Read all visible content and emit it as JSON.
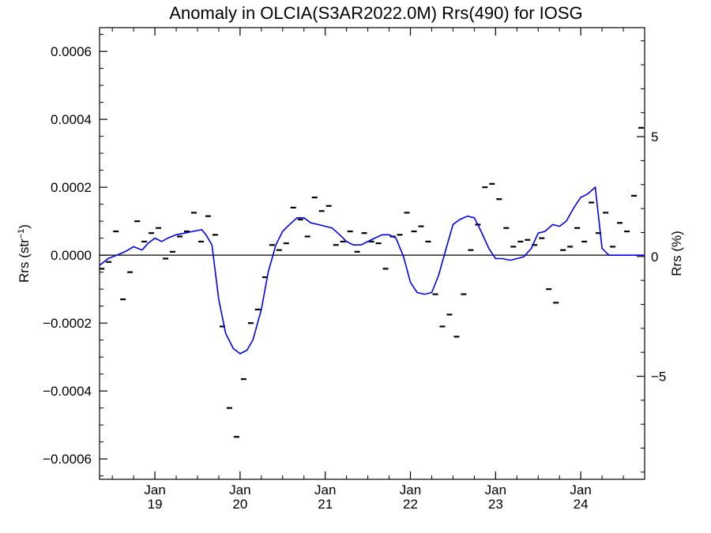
{
  "chart_data": {
    "type": "line",
    "title": "Anomaly in OLCIA(S3AR2022.0M) Rrs(490) for IOSG",
    "ylabel_left": "Rrs (str",
    "ylabel_left_sup": "−1",
    "ylabel_left_close": ")",
    "ylabel_right": "Rrs (%)",
    "xlim": [
      2018.35,
      2024.75
    ],
    "ylim": [
      -0.00066,
      0.00067
    ],
    "y2lim": [
      -9.3,
      9.55
    ],
    "yticks": [
      {
        "value": 0.0006,
        "label": "0.0006"
      },
      {
        "value": 0.0004,
        "label": "0.0004"
      },
      {
        "value": 0.0002,
        "label": "0.0002"
      },
      {
        "value": 0.0,
        "label": "0.0000"
      },
      {
        "value": -0.0002,
        "label": "−0.0002"
      },
      {
        "value": -0.0004,
        "label": "−0.0004"
      },
      {
        "value": -0.0006,
        "label": "−0.0006"
      }
    ],
    "y2ticks": [
      {
        "value": 5,
        "label": "5"
      },
      {
        "value": 0,
        "label": "0"
      },
      {
        "value": -5,
        "label": "−5"
      }
    ],
    "xticks": [
      {
        "value": 2019.0,
        "month": "Jan",
        "year": "19"
      },
      {
        "value": 2020.0,
        "month": "Jan",
        "year": "20"
      },
      {
        "value": 2021.0,
        "month": "Jan",
        "year": "21"
      },
      {
        "value": 2022.0,
        "month": "Jan",
        "year": "22"
      },
      {
        "value": 2023.0,
        "month": "Jan",
        "year": "23"
      },
      {
        "value": 2024.0,
        "month": "Jan",
        "year": "24"
      }
    ],
    "zero_line": 0,
    "grid": false,
    "series": [
      {
        "kind": "monthly anomalies",
        "style": "black horizontal markers",
        "color": "#000000",
        "x": [
          2018.375,
          2018.458,
          2018.542,
          2018.625,
          2018.708,
          2018.792,
          2018.875,
          2018.958,
          2019.042,
          2019.125,
          2019.208,
          2019.292,
          2019.375,
          2019.458,
          2019.542,
          2019.625,
          2019.708,
          2019.792,
          2019.875,
          2019.958,
          2020.042,
          2020.125,
          2020.208,
          2020.292,
          2020.375,
          2020.458,
          2020.542,
          2020.625,
          2020.708,
          2020.792,
          2020.875,
          2020.958,
          2021.042,
          2021.125,
          2021.208,
          2021.292,
          2021.375,
          2021.458,
          2021.542,
          2021.625,
          2021.708,
          2021.792,
          2021.875,
          2021.958,
          2022.042,
          2022.125,
          2022.208,
          2022.292,
          2022.375,
          2022.458,
          2022.542,
          2022.625,
          2022.708,
          2022.792,
          2022.875,
          2022.958,
          2023.042,
          2023.125,
          2023.208,
          2023.292,
          2023.375,
          2023.458,
          2023.542,
          2023.625,
          2023.708,
          2023.792,
          2023.875,
          2023.958,
          2024.042,
          2024.125,
          2024.208,
          2024.292,
          2024.375,
          2024.458,
          2024.542,
          2024.625,
          2024.708
        ],
        "y": [
          -4e-05,
          -2e-05,
          7e-05,
          -0.00013,
          -5e-05,
          0.0001,
          4e-05,
          6.5e-05,
          8e-05,
          -1e-05,
          1e-05,
          5.5e-05,
          7e-05,
          0.000125,
          4e-05,
          0.000115,
          6e-05,
          -0.00021,
          -0.00045,
          -0.000535,
          -0.000365,
          -0.0002,
          -0.00016,
          -6.5e-05,
          3e-05,
          1.5e-05,
          3.5e-05,
          0.00014,
          0.000105,
          5.5e-05,
          0.00017,
          0.00013,
          0.000145,
          3e-05,
          4e-05,
          7e-05,
          1e-05,
          6.5e-05,
          4e-05,
          3.5e-05,
          -4e-05,
          5.5e-05,
          6e-05,
          0.000125,
          7e-05,
          8.5e-05,
          4e-05,
          -0.000115,
          -0.00021,
          -0.000175,
          -0.00024,
          -0.000115,
          1.5e-05,
          9e-05,
          0.0002,
          0.00021,
          0.000165,
          8e-05,
          2.5e-05,
          4e-05,
          4.5e-05,
          3e-05,
          5e-05,
          -0.0001,
          -0.00014,
          1.5e-05,
          2.5e-05,
          8e-05,
          4e-05,
          0.000155,
          6.5e-05,
          0.000125,
          2.5e-05,
          9.5e-05,
          7e-05,
          0.000175,
          0.000375
        ]
      },
      {
        "kind": "smoothed anomaly",
        "style": "blue line",
        "color": "#0000ee",
        "x": [
          2018.35,
          2018.45,
          2018.55,
          2018.65,
          2018.75,
          2018.85,
          2018.92,
          2019.0,
          2019.08,
          2019.15,
          2019.25,
          2019.35,
          2019.45,
          2019.55,
          2019.6,
          2019.67,
          2019.75,
          2019.83,
          2019.92,
          2020.0,
          2020.08,
          2020.15,
          2020.25,
          2020.33,
          2020.42,
          2020.5,
          2020.58,
          2020.67,
          2020.75,
          2020.83,
          2020.92,
          2021.0,
          2021.08,
          2021.17,
          2021.25,
          2021.33,
          2021.42,
          2021.5,
          2021.58,
          2021.67,
          2021.75,
          2021.83,
          2021.92,
          2022.0,
          2022.08,
          2022.17,
          2022.25,
          2022.33,
          2022.42,
          2022.5,
          2022.58,
          2022.67,
          2022.75,
          2022.83,
          2022.92,
          2023.0,
          2023.08,
          2023.17,
          2023.25,
          2023.33,
          2023.42,
          2023.5,
          2023.58,
          2023.67,
          2023.75,
          2023.83,
          2023.92,
          2024.0,
          2024.08,
          2024.17,
          2024.25,
          2024.33,
          2024.42,
          2024.5,
          2024.58,
          2024.67,
          2024.75
        ],
        "y": [
          -3e-05,
          -1e-05,
          0.0,
          1e-05,
          2.5e-05,
          1.5e-05,
          3.5e-05,
          5e-05,
          4e-05,
          5e-05,
          6e-05,
          6.5e-05,
          7e-05,
          7.5e-05,
          6e-05,
          3e-05,
          -0.00013,
          -0.00023,
          -0.000275,
          -0.00029,
          -0.00028,
          -0.00025,
          -0.00016,
          -5e-05,
          3e-05,
          7e-05,
          9e-05,
          0.00011,
          0.00011,
          9.5e-05,
          9e-05,
          8.5e-05,
          8e-05,
          6e-05,
          4e-05,
          3e-05,
          3e-05,
          4e-05,
          5e-05,
          6e-05,
          6e-05,
          5e-05,
          -5e-06,
          -8e-05,
          -0.00011,
          -0.000115,
          -0.00011,
          -6e-05,
          2e-05,
          9e-05,
          0.000105,
          0.000115,
          0.00011,
          7e-05,
          2e-05,
          -1e-05,
          -1e-05,
          -1.5e-05,
          -1e-05,
          -5e-06,
          2e-05,
          6.5e-05,
          7e-05,
          9e-05,
          8.5e-05,
          0.0001,
          0.00014,
          0.00017,
          0.00018,
          0.0002,
          2e-05,
          0.0,
          0.0,
          0.0,
          0.0,
          0.0,
          0.0
        ]
      }
    ]
  }
}
